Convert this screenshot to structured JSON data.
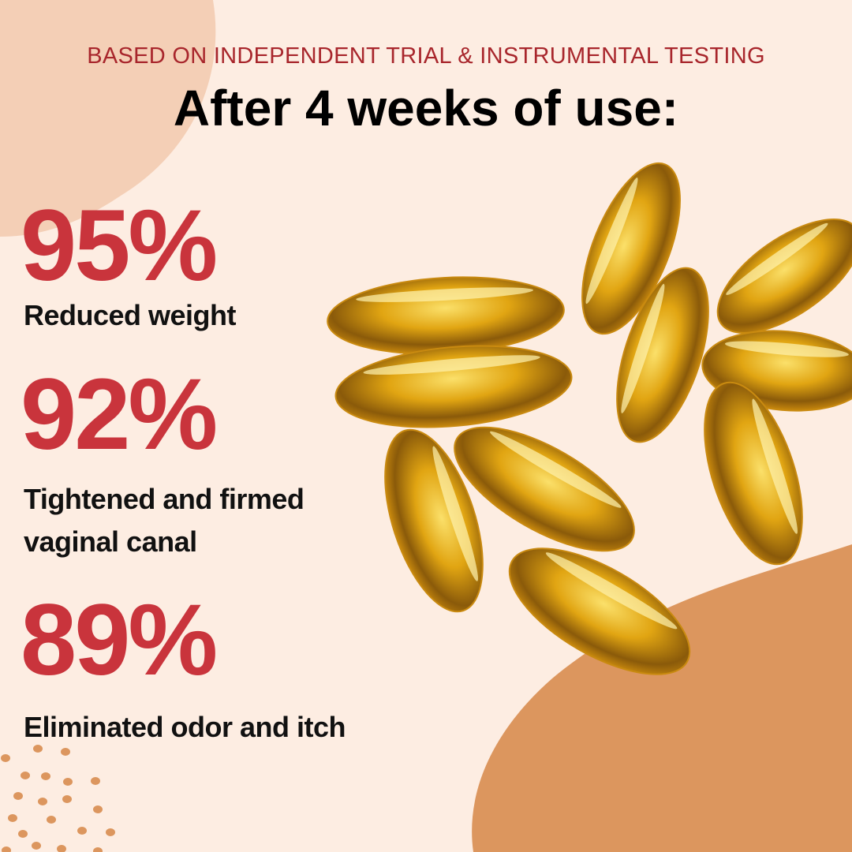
{
  "header": {
    "subtitle": "BASED ON INDEPENDENT TRIAL & INSTRUMENTAL TESTING",
    "title": "After 4 weeks of use:"
  },
  "stats": [
    {
      "value": "95%",
      "label": "Reduced weight"
    },
    {
      "value": "92%",
      "label_line1": "Tightened and firmed",
      "label_line2": "vaginal canal"
    },
    {
      "value": "89%",
      "label": "Eliminated odor and itch"
    }
  ],
  "colors": {
    "background": "#fdede2",
    "accent": "#c9343c",
    "subtitle": "#a8262c",
    "blob_light": "#f4cfb6",
    "blob_dark": "#dc965e",
    "capsule": "#e0a514"
  },
  "image": "softgel-capsules"
}
